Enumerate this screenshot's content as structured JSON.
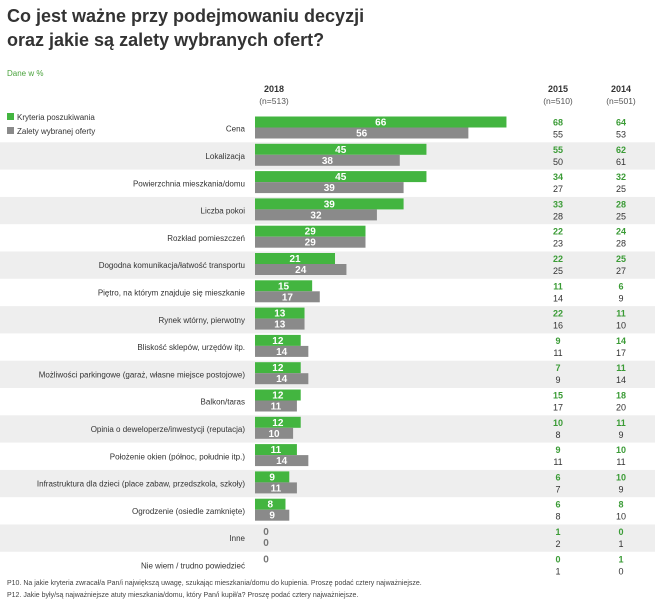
{
  "title_line1": "Co jest ważne przy podejmowaniu decyzji",
  "title_line2": "oraz jakie są zalety wybranych ofert?",
  "unit_label": "Dane w %",
  "colors": {
    "green": "#43b540",
    "gray": "#8a8a8a",
    "stripe": "#eeeeee",
    "green_text": "#3a9b35",
    "text": "#333333"
  },
  "chart_data": {
    "type": "bar",
    "orientation": "horizontal",
    "legend": {
      "position": "top-left",
      "entries": [
        "Kryteria poszukiwania",
        "Zalety wybranej oferty"
      ]
    },
    "columns": {
      "y2018": {
        "year": "2018",
        "n": "(n=513)"
      },
      "y2015": {
        "year": "2015",
        "n": "(n=510)"
      },
      "y2014": {
        "year": "2014",
        "n": "(n=501)"
      }
    },
    "xlim": [
      0,
      100
    ],
    "categories": [
      "Cena",
      "Lokalizacja",
      "Powierzchnia mieszkania/domu",
      "Liczba pokoi",
      "Rozkład pomieszczeń",
      "Dogodna komunikacja/łatwość transportu",
      "Piętro, na którym znajduje się mieszkanie",
      "Rynek wtórny, pierwotny",
      "Bliskość sklepów, urzędów itp.",
      "Możliwości parkingowe (garaż, własne miejsce postojowe)",
      "Balkon/taras",
      "Opinia o deweloperze/inwestycji (reputacja)",
      "Położenie okien (północ, południe itp.)",
      "Infrastruktura dla dzieci (place zabaw, przedszkola, szkoły)",
      "Ogrodzenie (osiedle zamknięte)",
      "Inne",
      "Nie wiem / trudno powiedzieć"
    ],
    "series": [
      {
        "name": "Kryteria poszukiwania",
        "year": "2018",
        "values": [
          66,
          45,
          45,
          39,
          29,
          21,
          15,
          13,
          12,
          12,
          12,
          12,
          11,
          9,
          8,
          0,
          0
        ]
      },
      {
        "name": "Zalety wybranej oferty",
        "year": "2018",
        "values": [
          56,
          38,
          39,
          32,
          29,
          24,
          17,
          13,
          14,
          14,
          11,
          10,
          14,
          11,
          9,
          0,
          null
        ]
      },
      {
        "name": "Kryteria poszukiwania",
        "year": "2015",
        "values": [
          68,
          55,
          34,
          33,
          22,
          22,
          11,
          22,
          9,
          7,
          15,
          10,
          9,
          6,
          6,
          1,
          0
        ]
      },
      {
        "name": "Zalety wybranej oferty",
        "year": "2015",
        "values": [
          55,
          50,
          27,
          28,
          23,
          25,
          14,
          16,
          11,
          9,
          17,
          8,
          11,
          7,
          8,
          2,
          1
        ]
      },
      {
        "name": "Kryteria poszukiwania",
        "year": "2014",
        "values": [
          64,
          62,
          32,
          28,
          24,
          25,
          6,
          11,
          14,
          11,
          18,
          11,
          10,
          10,
          8,
          0,
          1
        ]
      },
      {
        "name": "Zalety wybranej oferty",
        "year": "2014",
        "values": [
          53,
          61,
          25,
          25,
          28,
          27,
          9,
          10,
          17,
          14,
          20,
          9,
          11,
          9,
          10,
          1,
          0
        ]
      }
    ]
  },
  "footnotes": [
    "P10. Na jakie kryteria zwracał/a Pan/i największą uwagę, szukając mieszkania/domu do kupienia. Proszę podać cztery najważniejsze.",
    "P12. Jakie były/są najważniejsze atuty mieszkania/domu, który Pan/i kupił/a? Proszę podać cztery najważniejsze."
  ]
}
